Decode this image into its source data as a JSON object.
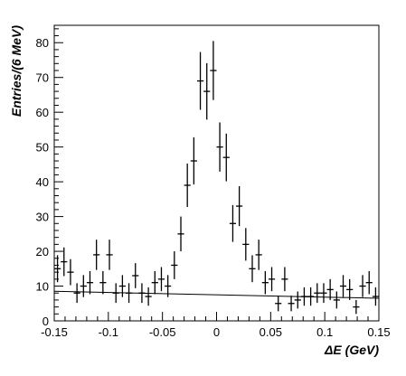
{
  "chart_data": {
    "type": "scatter",
    "title": "",
    "xlabel": "ΔE (GeV)",
    "ylabel": "Entries/(6 MeV)",
    "xlim": [
      -0.15,
      0.15
    ],
    "ylim": [
      0,
      85
    ],
    "x_ticks": [
      -0.15,
      -0.1,
      -0.05,
      0,
      0.05,
      0.1,
      0.15
    ],
    "x_tick_labels": [
      "-0.15",
      "-0.1",
      "-0.05",
      "0",
      "0.05",
      "0.1",
      "0.15"
    ],
    "y_ticks": [
      0,
      10,
      20,
      30,
      40,
      50,
      60,
      70,
      80
    ],
    "y_tick_labels": [
      "0",
      "10",
      "20",
      "30",
      "40",
      "50",
      "60",
      "70",
      "80"
    ],
    "grid": false,
    "legend": "none",
    "bin_width": 0.006,
    "series": [
      {
        "kind": "points_with_errors",
        "x": [
          -0.147,
          -0.141,
          -0.135,
          -0.129,
          -0.123,
          -0.117,
          -0.111,
          -0.105,
          -0.099,
          -0.093,
          -0.087,
          -0.081,
          -0.075,
          -0.069,
          -0.063,
          -0.057,
          -0.051,
          -0.045,
          -0.039,
          -0.033,
          -0.027,
          -0.021,
          -0.015,
          -0.009,
          -0.003,
          0.003,
          0.009,
          0.015,
          0.021,
          0.027,
          0.033,
          0.039,
          0.045,
          0.051,
          0.057,
          0.063,
          0.069,
          0.075,
          0.081,
          0.087,
          0.093,
          0.099,
          0.105,
          0.111,
          0.117,
          0.123,
          0.129,
          0.135,
          0.141,
          0.147
        ],
        "y": [
          15,
          17,
          14,
          8,
          10,
          11,
          19,
          11,
          19,
          8,
          10,
          8,
          13,
          8,
          7,
          11,
          12,
          10,
          16,
          25,
          39,
          46,
          69,
          66,
          72,
          50,
          47,
          28,
          33,
          22,
          15,
          19,
          11,
          12,
          5,
          12,
          5,
          6,
          7,
          7,
          8,
          8,
          9,
          6,
          10,
          9,
          4,
          10,
          11,
          7
        ]
      },
      {
        "kind": "fit_line",
        "x": [
          -0.15,
          0.15
        ],
        "y": [
          8.5,
          6.5
        ]
      }
    ]
  }
}
